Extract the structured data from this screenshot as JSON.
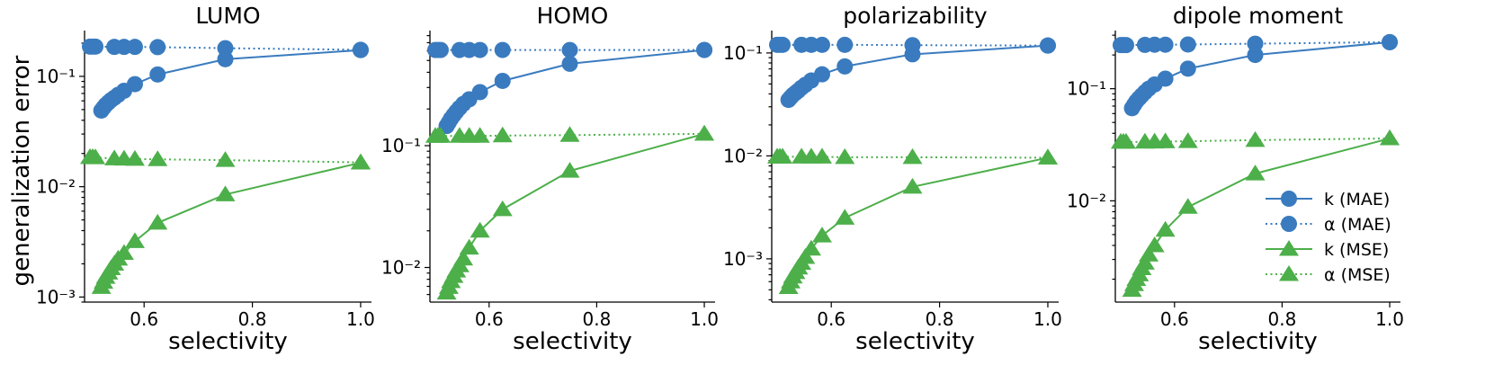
{
  "figure": {
    "ylabel": "generalization error",
    "xlabel": "selectivity",
    "colors": {
      "k_MAE": "#3a7bbf",
      "alpha_MAE": "#3a7bbf",
      "k_MSE": "#4daf4a",
      "alpha_MSE": "#4daf4a"
    },
    "legend": {
      "placement": "lower-right of last panel",
      "entries": [
        {
          "label": "k (MAE)",
          "marker": "circle",
          "line": "solid",
          "color": "#3a7bbf"
        },
        {
          "label": "α (MAE)",
          "marker": "circle",
          "line": "dotted",
          "color": "#3a7bbf"
        },
        {
          "label": "k (MSE)",
          "marker": "triangle",
          "line": "solid",
          "color": "#4daf4a"
        },
        {
          "label": "α (MSE)",
          "marker": "triangle",
          "line": "dotted",
          "color": "#4daf4a"
        }
      ]
    }
  },
  "chart_data": [
    {
      "type": "line",
      "title": "LUMO",
      "xlabel": "selectivity",
      "ylabel": "generalization error",
      "yscale": "log",
      "xlim": [
        0.49,
        1.02
      ],
      "ylim": [
        0.0009,
        0.26
      ],
      "xticks": [
        0.6,
        0.8,
        1.0
      ],
      "xtick_labels": [
        "0.6",
        "0.8",
        "1.0"
      ],
      "yticks": [
        0.001,
        0.01,
        0.1
      ],
      "ytick_labels": [
        "10⁻³",
        "10⁻²",
        "10⁻¹"
      ],
      "series": [
        {
          "name": "k (MAE)",
          "marker": "circle",
          "line": "solid",
          "x": [
            0.521,
            0.525,
            0.529,
            0.534,
            0.539,
            0.545,
            0.552,
            0.563,
            0.583,
            0.625,
            0.75,
            1.0
          ],
          "y": [
            0.049,
            0.052,
            0.055,
            0.058,
            0.061,
            0.064,
            0.068,
            0.074,
            0.085,
            0.104,
            0.143,
            0.173
          ]
        },
        {
          "name": "α (MAE)",
          "marker": "circle",
          "line": "dotted",
          "x": [
            0.5,
            0.505,
            0.51,
            0.545,
            0.563,
            0.583,
            0.625,
            0.75,
            1.0
          ],
          "y": [
            0.186,
            0.186,
            0.186,
            0.185,
            0.185,
            0.185,
            0.184,
            0.18,
            0.174
          ]
        },
        {
          "name": "k (MSE)",
          "marker": "triangle",
          "line": "solid",
          "x": [
            0.521,
            0.525,
            0.529,
            0.534,
            0.539,
            0.545,
            0.552,
            0.563,
            0.583,
            0.625,
            0.75,
            1.0
          ],
          "y": [
            0.00123,
            0.00137,
            0.00152,
            0.00166,
            0.00182,
            0.002,
            0.00222,
            0.0025,
            0.0032,
            0.0047,
            0.0085,
            0.0165
          ]
        },
        {
          "name": "α (MSE)",
          "marker": "triangle",
          "line": "dotted",
          "x": [
            0.5,
            0.505,
            0.51,
            0.545,
            0.563,
            0.583,
            0.625,
            0.75,
            1.0
          ],
          "y": [
            0.0185,
            0.0185,
            0.0184,
            0.018,
            0.0179,
            0.0178,
            0.0177,
            0.0174,
            0.0166
          ]
        }
      ]
    },
    {
      "type": "line",
      "title": "HOMO",
      "xlabel": "selectivity",
      "ylabel": "",
      "yscale": "log",
      "xlim": [
        0.49,
        1.02
      ],
      "ylim": [
        0.0052,
        0.88
      ],
      "xticks": [
        0.6,
        0.8,
        1.0
      ],
      "xtick_labels": [
        "0.6",
        "0.8",
        "1.0"
      ],
      "yticks": [
        0.01,
        0.1
      ],
      "ytick_labels": [
        "10⁻²",
        "10⁻¹"
      ],
      "series": [
        {
          "name": "k (MAE)",
          "marker": "circle",
          "line": "solid",
          "x": [
            0.521,
            0.525,
            0.529,
            0.534,
            0.539,
            0.545,
            0.552,
            0.563,
            0.583,
            0.625,
            0.75,
            1.0
          ],
          "y": [
            0.145,
            0.155,
            0.166,
            0.178,
            0.19,
            0.204,
            0.22,
            0.24,
            0.275,
            0.34,
            0.47,
            0.61
          ]
        },
        {
          "name": "α (MAE)",
          "marker": "circle",
          "line": "dotted",
          "x": [
            0.5,
            0.505,
            0.51,
            0.545,
            0.563,
            0.583,
            0.625,
            0.75,
            1.0
          ],
          "y": [
            0.61,
            0.61,
            0.61,
            0.61,
            0.61,
            0.61,
            0.61,
            0.61,
            0.61
          ]
        },
        {
          "name": "k (MSE)",
          "marker": "triangle",
          "line": "solid",
          "x": [
            0.521,
            0.525,
            0.529,
            0.534,
            0.539,
            0.545,
            0.552,
            0.563,
            0.583,
            0.625,
            0.75,
            1.0
          ],
          "y": [
            0.0062,
            0.0069,
            0.0077,
            0.0085,
            0.0094,
            0.0104,
            0.0118,
            0.0145,
            0.02,
            0.03,
            0.062,
            0.125
          ]
        },
        {
          "name": "α (MSE)",
          "marker": "triangle",
          "line": "dotted",
          "x": [
            0.5,
            0.505,
            0.51,
            0.545,
            0.563,
            0.583,
            0.625,
            0.75,
            1.0
          ],
          "y": [
            0.12,
            0.12,
            0.12,
            0.12,
            0.12,
            0.12,
            0.121,
            0.122,
            0.125
          ]
        }
      ]
    },
    {
      "type": "line",
      "title": "polarizability",
      "xlabel": "selectivity",
      "ylabel": "",
      "yscale": "log",
      "xlim": [
        0.49,
        1.02
      ],
      "ylim": [
        0.00038,
        0.165
      ],
      "xticks": [
        0.6,
        0.8,
        1.0
      ],
      "xtick_labels": [
        "0.6",
        "0.8",
        "1.0"
      ],
      "yticks": [
        0.001,
        0.01,
        0.1
      ],
      "ytick_labels": [
        "10⁻³",
        "10⁻²",
        "10⁻¹"
      ],
      "series": [
        {
          "name": "k (MAE)",
          "marker": "circle",
          "line": "solid",
          "x": [
            0.521,
            0.525,
            0.529,
            0.534,
            0.539,
            0.545,
            0.552,
            0.563,
            0.583,
            0.625,
            0.75,
            1.0
          ],
          "y": [
            0.035,
            0.037,
            0.039,
            0.041,
            0.043,
            0.046,
            0.049,
            0.054,
            0.062,
            0.074,
            0.097,
            0.118
          ]
        },
        {
          "name": "α (MAE)",
          "marker": "circle",
          "line": "dotted",
          "x": [
            0.5,
            0.505,
            0.51,
            0.545,
            0.563,
            0.583,
            0.625,
            0.75,
            1.0
          ],
          "y": [
            0.12,
            0.12,
            0.12,
            0.12,
            0.12,
            0.12,
            0.12,
            0.119,
            0.118
          ]
        },
        {
          "name": "k (MSE)",
          "marker": "triangle",
          "line": "solid",
          "x": [
            0.521,
            0.525,
            0.529,
            0.534,
            0.539,
            0.545,
            0.552,
            0.563,
            0.583,
            0.625,
            0.75,
            1.0
          ],
          "y": [
            0.00053,
            0.0006,
            0.00067,
            0.00074,
            0.00082,
            0.00091,
            0.00104,
            0.00125,
            0.00168,
            0.0025,
            0.005,
            0.0096
          ]
        },
        {
          "name": "α (MSE)",
          "marker": "triangle",
          "line": "dotted",
          "x": [
            0.5,
            0.505,
            0.51,
            0.545,
            0.563,
            0.583,
            0.625,
            0.75,
            1.0
          ],
          "y": [
            0.0098,
            0.0098,
            0.0098,
            0.0098,
            0.0098,
            0.0098,
            0.0097,
            0.0097,
            0.0096
          ]
        }
      ]
    },
    {
      "type": "line",
      "title": "dipole moment",
      "xlabel": "selectivity",
      "ylabel": "",
      "yscale": "log",
      "xlim": [
        0.49,
        1.02
      ],
      "ylim": [
        0.00125,
        0.33
      ],
      "xticks": [
        0.6,
        0.8,
        1.0
      ],
      "xtick_labels": [
        "0.6",
        "0.8",
        "1.0"
      ],
      "yticks": [
        0.01,
        0.1
      ],
      "ytick_labels": [
        "10⁻²",
        "10⁻¹"
      ],
      "series": [
        {
          "name": "k (MAE)",
          "marker": "circle",
          "line": "solid",
          "x": [
            0.521,
            0.525,
            0.529,
            0.534,
            0.539,
            0.545,
            0.552,
            0.563,
            0.583,
            0.625,
            0.75,
            1.0
          ],
          "y": [
            0.067,
            0.072,
            0.077,
            0.082,
            0.087,
            0.093,
            0.1,
            0.109,
            0.123,
            0.151,
            0.2,
            0.26
          ]
        },
        {
          "name": "α (MAE)",
          "marker": "circle",
          "line": "dotted",
          "x": [
            0.5,
            0.505,
            0.51,
            0.545,
            0.563,
            0.583,
            0.625,
            0.75,
            1.0
          ],
          "y": [
            0.245,
            0.245,
            0.245,
            0.246,
            0.247,
            0.247,
            0.248,
            0.252,
            0.26
          ]
        },
        {
          "name": "k (MSE)",
          "marker": "triangle",
          "line": "solid",
          "x": [
            0.521,
            0.525,
            0.529,
            0.534,
            0.539,
            0.545,
            0.552,
            0.563,
            0.583,
            0.625,
            0.75,
            1.0
          ],
          "y": [
            0.0016,
            0.0018,
            0.002,
            0.0022,
            0.0025,
            0.0028,
            0.0033,
            0.004,
            0.0055,
            0.0088,
            0.0175,
            0.036
          ]
        },
        {
          "name": "α (MSE)",
          "marker": "triangle",
          "line": "dotted",
          "x": [
            0.5,
            0.505,
            0.51,
            0.545,
            0.563,
            0.583,
            0.625,
            0.75,
            1.0
          ],
          "y": [
            0.0335,
            0.0335,
            0.0335,
            0.0336,
            0.0337,
            0.0338,
            0.034,
            0.0348,
            0.036
          ]
        }
      ]
    }
  ]
}
